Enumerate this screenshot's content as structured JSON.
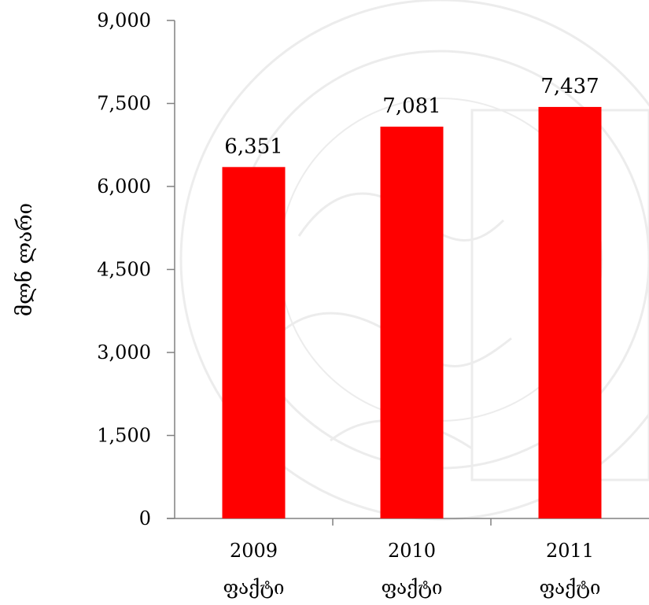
{
  "chart_data": {
    "type": "bar",
    "categories": [
      [
        "2009",
        "ფაქტი"
      ],
      [
        "2010",
        "ფაქტი"
      ],
      [
        "2011",
        "ფაქტი"
      ]
    ],
    "values": [
      6351,
      7081,
      7437
    ],
    "value_labels": [
      "6,351",
      "7,081",
      "7,437"
    ],
    "title": "",
    "xlabel": "",
    "ylabel": "მლნ ლარი",
    "ylim": [
      0,
      9000
    ],
    "yticks": [
      0,
      1500,
      3000,
      4500,
      6000,
      7500,
      9000
    ],
    "ytick_labels": [
      "0",
      "1,500",
      "3,000",
      "4,500",
      "6,000",
      "7,500",
      "9,000"
    ],
    "bar_color": "#ff0000",
    "axis_color": "#808080",
    "grid": false,
    "legend": "none"
  }
}
